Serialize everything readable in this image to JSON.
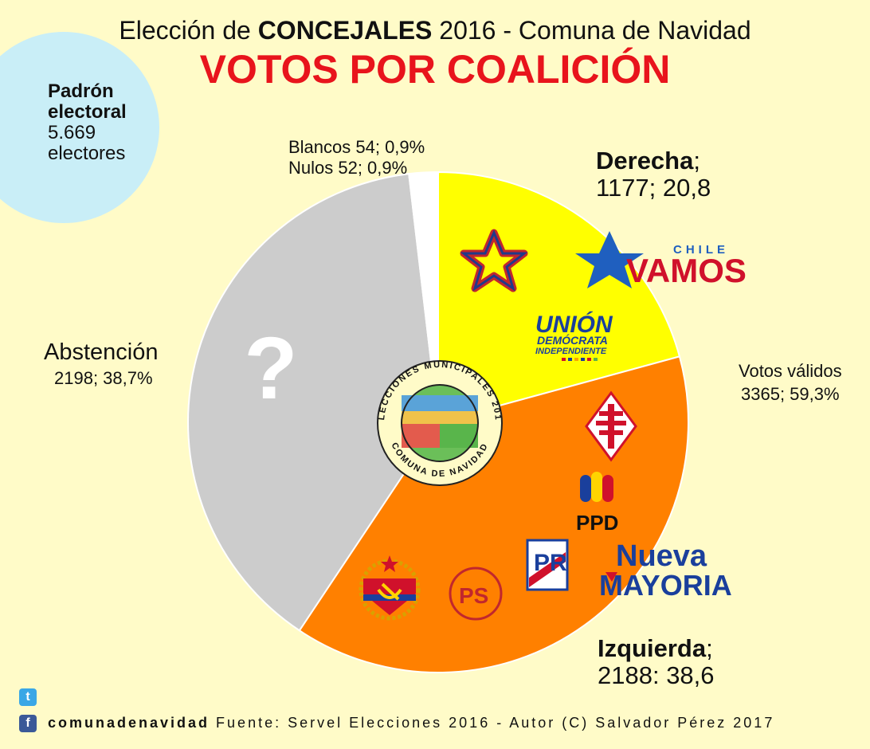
{
  "title": {
    "pre": "Elección de ",
    "bold": "CONCEJALES",
    "post": " 2016 - Comuna de Navidad"
  },
  "subtitle": "VOTOS POR COALICIÓN",
  "padron": {
    "line1": "Padrón",
    "line2": "electoral",
    "line3": "5.669",
    "line4": "electores"
  },
  "labels": {
    "blancos": "Blancos 54; 0,9%",
    "nulos": "Nulos 52; 0,9%",
    "derecha_name": "Derecha",
    "derecha_sep": ";",
    "derecha_value": "1177; 20,8",
    "abstencion_name": "Abstención",
    "abstencion_value": "2198; 38,7%",
    "validos_name": "Votos válidos",
    "validos_value": "3365; 59,3%",
    "izquierda_name": "Izquierda",
    "izquierda_sep": ";",
    "izquierda_value": "2188: 38,6"
  },
  "logos": {
    "vamos_top": "CHILE",
    "vamos_main": "VAMOS",
    "udi_main": "UNIÓN",
    "udi_sub1": "DEMÓCRATA",
    "udi_sub2": "INDEPENDIENTE",
    "ppd": "PPD",
    "nm_line1": "Nueva",
    "nm_line2": "MAYORIA",
    "pr": "PR",
    "ps": "PS",
    "question": "?",
    "seal_top": "ELECCIONES MUNICIPALES 2016",
    "seal_bottom": "COMUNA DE NAVIDAD"
  },
  "footer": {
    "site": "comunadenavidad",
    "source": " Fuente: Servel Elecciones 2016 - Autor (C) Salvador Pérez 2017"
  },
  "colors": {
    "derecha": "#ffff00",
    "izquierda": "#ff8000",
    "abstencion": "#cccccc",
    "blancos_nulos": "#ffffff",
    "title_red": "#e8141c",
    "background": "#fffbc8",
    "padron_circle": "#c9eef7"
  },
  "chart_data": {
    "type": "pie",
    "title": "VOTOS POR COALICIÓN",
    "slices": [
      {
        "label": "Derecha",
        "value": 1177,
        "percent": 20.8,
        "color": "#ffff00"
      },
      {
        "label": "Izquierda",
        "value": 2188,
        "percent": 38.6,
        "color": "#ff8000"
      },
      {
        "label": "Abstención",
        "value": 2198,
        "percent": 38.7,
        "color": "#cccccc"
      },
      {
        "label": "Blancos",
        "value": 54,
        "percent": 0.9,
        "color": "#ffffff"
      },
      {
        "label": "Nulos",
        "value": 52,
        "percent": 0.9,
        "color": "#ffffff"
      }
    ],
    "annotations": [
      "Padrón electoral 5.669 electores",
      "Votos válidos 3365; 59,3%"
    ]
  }
}
